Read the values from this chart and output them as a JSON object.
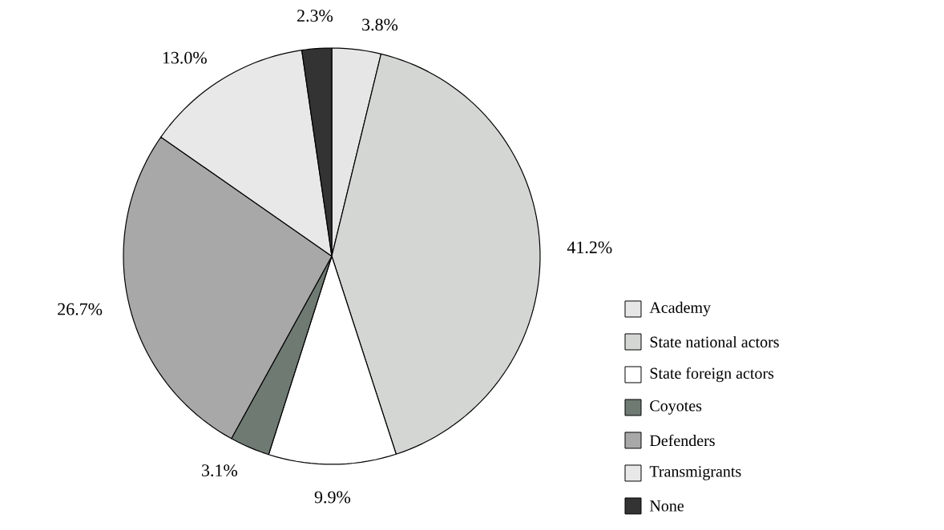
{
  "chart_data": {
    "type": "pie",
    "categories": [
      "Academy",
      "State national actors",
      "State foreign actors",
      "Coyotes",
      "Defenders",
      "Transmigrants",
      "None"
    ],
    "values": [
      3.8,
      41.2,
      9.9,
      3.1,
      26.7,
      13.0,
      2.3
    ],
    "value_labels": [
      "3.8%",
      "41.2%",
      "9.9%",
      "3.1%",
      "26.7%",
      "13.0%",
      "2.3%"
    ],
    "colors": [
      "#e6e6e6",
      "#d4d6d4",
      "#ffffff",
      "#6f7a73",
      "#a8a8a8",
      "#e8e8e8",
      "#333333"
    ],
    "legend": "right"
  }
}
